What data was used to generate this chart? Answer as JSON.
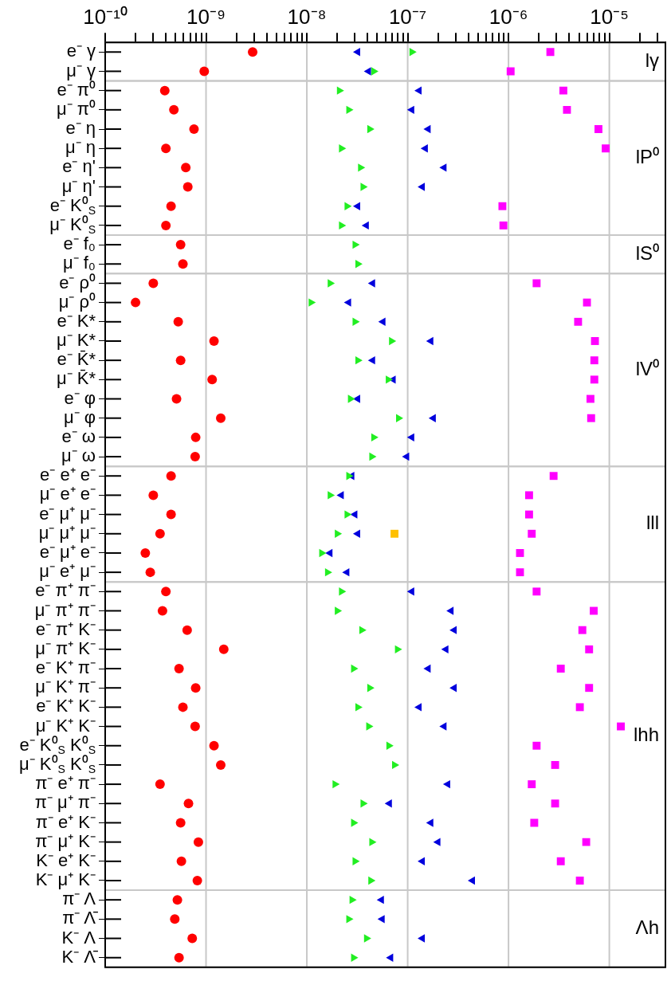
{
  "chart_data": {
    "type": "scatter",
    "orientation": "horizontal",
    "log": "x",
    "grid": "x",
    "categories": [
      "e⁻ γ",
      "μ⁻ γ",
      "e⁻ π⁰",
      "μ⁻ π⁰",
      "e⁻ η",
      "μ⁻ η",
      "e⁻ η'",
      "μ⁻ η'",
      "e⁻ K⁰$_{S}$",
      "μ⁻ K⁰$_{S}$",
      "e⁻ f₀",
      "μ⁻ f₀",
      "e⁻ ρ⁰",
      "μ⁻ ρ⁰",
      "e⁻ K*",
      "μ⁻ K*",
      "e⁻ K̄*",
      "μ⁻ K̄*",
      "e⁻ φ",
      "μ⁻ φ",
      "e⁻ ω",
      "μ⁻ ω",
      "e⁻ e⁺ e⁻",
      "μ⁻ e⁺ e⁻",
      "e⁻ μ⁺ μ⁻",
      "μ⁻ μ⁺ μ⁻",
      "e⁻ μ⁺ e⁻",
      "μ⁻ e⁺ μ⁻",
      "e⁻ π⁺ π⁻",
      "μ⁻ π⁺ π⁻",
      "e⁻ π⁺ K⁻",
      "μ⁻ π⁺ K⁻",
      "e⁻ K⁺ π⁻",
      "μ⁻ K⁺ π⁻",
      "e⁻ K⁺ K⁻",
      "μ⁻ K⁺ K⁻",
      "e⁻ K⁰$_{S}$ K⁰$_{S}$",
      "μ⁻ K⁰$_{S}$ K⁰$_{S}$",
      "π⁻ e⁺ π⁻",
      "π⁻ μ⁺ π⁻",
      "π⁻ e⁺ K⁻",
      "π⁻ μ⁺ K⁻",
      "K⁻ e⁺ K⁻",
      "K⁻ μ⁺ K⁻",
      "π⁻ Λ",
      "π⁻ Λ̄",
      "K⁻ Λ",
      "K⁻ Λ̄"
    ],
    "series": [
      {
        "color": "#ff0000",
        "marker": "circle",
        "values": [
          2.9e-09,
          9.6e-10,
          3.9e-10,
          4.8e-10,
          7.6e-10,
          4e-10,
          6.3e-10,
          6.6e-10,
          4.5e-10,
          4e-10,
          5.6e-10,
          5.9e-10,
          3e-10,
          2e-10,
          5.3e-10,
          1.2e-09,
          5.6e-10,
          1.15e-09,
          5.1e-10,
          1.4e-09,
          7.9e-10,
          7.8e-10,
          4.5e-10,
          3e-10,
          4.5e-10,
          3.5e-10,
          2.5e-10,
          2.8e-10,
          4e-10,
          3.7e-10,
          6.5e-10,
          1.5e-09,
          5.4e-10,
          7.9e-10,
          5.9e-10,
          7.8e-10,
          1.2e-09,
          1.4e-09,
          3.5e-10,
          6.7e-10,
          5.6e-10,
          8.4e-10,
          5.7e-10,
          8.2e-10,
          5.2e-10,
          4.9e-10,
          7.3e-10,
          5.4e-10
        ]
      },
      {
        "color": "#22ee22",
        "marker": "triangle",
        "values": [
          1.1e-07,
          4.6e-08,
          2.1e-08,
          2.6e-08,
          4.2e-08,
          2.2e-08,
          3.4e-08,
          3.6e-08,
          2.5e-08,
          2.2e-08,
          3e-08,
          3.2e-08,
          1.7e-08,
          1.1e-08,
          3e-08,
          6.9e-08,
          3.2e-08,
          6.4e-08,
          2.7e-08,
          8.1e-08,
          4.6e-08,
          4.4e-08,
          2.6e-08,
          1.7e-08,
          2.5e-08,
          2e-08,
          1.4e-08,
          1.6e-08,
          2.2e-08,
          2e-08,
          3.5e-08,
          7.9e-08,
          2.9e-08,
          4.2e-08,
          3.2e-08,
          4.1e-08,
          6.5e-08,
          7.4e-08,
          1.9e-08,
          3.6e-08,
          2.9e-08,
          4.4e-08,
          3e-08,
          4.3e-08,
          2.8e-08,
          2.6e-08,
          3.9e-08,
          2.9e-08
        ]
      },
      {
        "color": "#0000dd",
        "marker": "triangle",
        "values": [
          3.2e-08,
          4.1e-08,
          1.3e-07,
          1.1e-07,
          1.6e-07,
          1.5e-07,
          2.3e-07,
          1.4e-07,
          3.2e-08,
          3.9e-08,
          null,
          null,
          4.5e-08,
          2.6e-08,
          5.7e-08,
          1.7e-07,
          4.5e-08,
          7.2e-08,
          3.2e-08,
          1.8e-07,
          1.1e-07,
          9.8e-08,
          2.8e-08,
          2.2e-08,
          3e-08,
          3.2e-08,
          1.7e-08,
          2.5e-08,
          1.1e-07,
          2.7e-07,
          2.9e-07,
          2.4e-07,
          1.6e-07,
          2.9e-07,
          1.3e-07,
          2.3e-07,
          null,
          null,
          2.5e-07,
          6.6e-08,
          1.7e-07,
          2e-07,
          1.4e-07,
          4.4e-07,
          5.5e-08,
          5.6e-08,
          1.4e-07,
          6.8e-08
        ]
      },
      {
        "color": "#ff00ff",
        "marker": "square",
        "values": [
          2.6e-06,
          1.05e-06,
          3.5e-06,
          3.8e-06,
          7.8e-06,
          9.2e-06,
          null,
          null,
          8.7e-07,
          8.9e-07,
          null,
          null,
          1.9e-06,
          6e-06,
          4.9e-06,
          7.2e-06,
          7.1e-06,
          7.1e-06,
          6.5e-06,
          6.6e-06,
          null,
          null,
          2.8e-06,
          1.6e-06,
          1.6e-06,
          1.7e-06,
          1.3e-06,
          1.3e-06,
          1.9e-06,
          7e-06,
          5.4e-06,
          6.3e-06,
          3.3e-06,
          6.3e-06,
          5.1e-06,
          1.3e-05,
          1.9e-06,
          2.9e-06,
          1.7e-06,
          2.9e-06,
          1.8e-06,
          5.9e-06,
          3.3e-06,
          5.1e-06,
          null,
          null,
          null,
          null
        ]
      },
      {
        "color": "#ffc000",
        "marker": "square",
        "values": [
          null,
          null,
          null,
          null,
          null,
          null,
          null,
          null,
          null,
          null,
          null,
          null,
          null,
          null,
          null,
          null,
          null,
          null,
          null,
          null,
          null,
          null,
          null,
          null,
          null,
          7.4e-08,
          null,
          null,
          null,
          null,
          null,
          null,
          null,
          null,
          null,
          null,
          null,
          null,
          null,
          null,
          null,
          null,
          null,
          null,
          null,
          null,
          null,
          null
        ]
      }
    ],
    "xlim": [
      1e-10,
      3.6e-05
    ],
    "xticks": [
      {
        "value": 1e-10,
        "label": "10⁻¹⁰"
      },
      {
        "value": 2e-10,
        "label": null
      },
      {
        "value": 3e-10,
        "label": null
      },
      {
        "value": 4e-10,
        "label": null
      },
      {
        "value": 5e-10,
        "label": null
      },
      {
        "value": 6e-10,
        "label": null
      },
      {
        "value": 7e-10,
        "label": null
      },
      {
        "value": 8e-10,
        "label": null
      },
      {
        "value": 9e-10,
        "label": null
      },
      {
        "value": 1e-09,
        "label": "10⁻⁹"
      },
      {
        "value": 2e-09,
        "label": null
      },
      {
        "value": 3e-09,
        "label": null
      },
      {
        "value": 4e-09,
        "label": null
      },
      {
        "value": 5e-09,
        "label": null
      },
      {
        "value": 6e-09,
        "label": null
      },
      {
        "value": 7e-09,
        "label": null
      },
      {
        "value": 8e-09,
        "label": null
      },
      {
        "value": 9e-09,
        "label": null
      },
      {
        "value": 1e-08,
        "label": "10⁻⁸"
      },
      {
        "value": 2e-08,
        "label": null
      },
      {
        "value": 3e-08,
        "label": null
      },
      {
        "value": 4e-08,
        "label": null
      },
      {
        "value": 5e-08,
        "label": null
      },
      {
        "value": 6e-08,
        "label": null
      },
      {
        "value": 7e-08,
        "label": null
      },
      {
        "value": 8e-08,
        "label": null
      },
      {
        "value": 9e-08,
        "label": null
      },
      {
        "value": 1e-07,
        "label": "10⁻⁷"
      },
      {
        "value": 2e-07,
        "label": null
      },
      {
        "value": 3e-07,
        "label": null
      },
      {
        "value": 4e-07,
        "label": null
      },
      {
        "value": 5e-07,
        "label": null
      },
      {
        "value": 6e-07,
        "label": null
      },
      {
        "value": 7e-07,
        "label": null
      },
      {
        "value": 8e-07,
        "label": null
      },
      {
        "value": 9e-07,
        "label": null
      },
      {
        "value": 1e-06,
        "label": "10⁻⁶"
      },
      {
        "value": 2e-06,
        "label": null
      },
      {
        "value": 3e-06,
        "label": null
      },
      {
        "value": 4e-06,
        "label": null
      },
      {
        "value": 5e-06,
        "label": null
      },
      {
        "value": 6e-06,
        "label": null
      },
      {
        "value": 7e-06,
        "label": null
      },
      {
        "value": 8e-06,
        "label": null
      },
      {
        "value": 9e-06,
        "label": null
      },
      {
        "value": 1e-05,
        "label": "10⁻⁵"
      },
      {
        "value": 2e-05,
        "label": null
      },
      {
        "value": 3e-05,
        "label": null
      }
    ],
    "bands": [
      {
        "axis": "y",
        "from": "e⁻ γ",
        "to": "μ⁻ γ",
        "label": "lγ",
        "color": "#ffffff"
      },
      {
        "axis": "y",
        "from": "e⁻ π⁰",
        "to": "μ⁻ K⁰$_{S}$",
        "label": "lP⁰",
        "color": "#ffffff"
      },
      {
        "axis": "y",
        "from": "e⁻ f₀",
        "to": "μ⁻ f₀",
        "label": "lS⁰",
        "color": "#ffffff"
      },
      {
        "axis": "y",
        "from": "e⁻ ρ⁰",
        "to": "μ⁻ ω",
        "label": "lV⁰",
        "color": "#ffffff"
      },
      {
        "axis": "y",
        "from": "e⁻ e⁺ e⁻",
        "to": "μ⁻ e⁺ μ⁻",
        "label": "lll",
        "color": "#ffffff"
      },
      {
        "axis": "y",
        "from": "e⁻ π⁺ π⁻",
        "to": "K⁻ μ⁺ K⁻",
        "label": "lhh",
        "color": "#ffffff"
      },
      {
        "axis": "y",
        "from": "π⁻ Λ",
        "to": "K⁻ Λ̄",
        "label": "Λh",
        "color": "#ffffff"
      }
    ]
  }
}
